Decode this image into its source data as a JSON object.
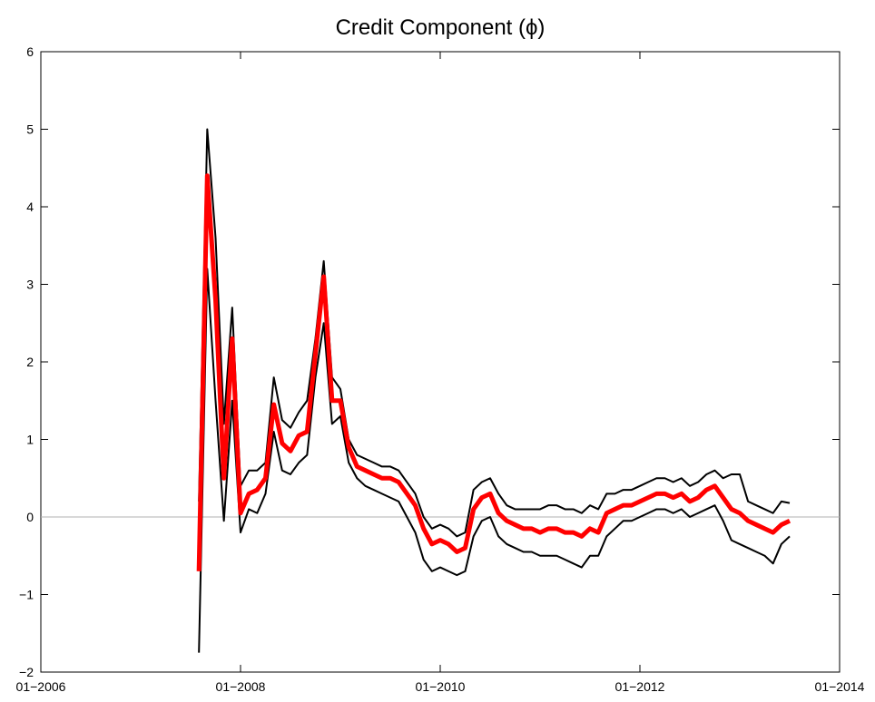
{
  "chart_data": {
    "type": "line",
    "title": "Credit Component (ϕ)",
    "x": [
      "2007-08",
      "2007-09",
      "2007-10",
      "2007-11",
      "2007-12",
      "2008-01",
      "2008-02",
      "2008-03",
      "2008-04",
      "2008-05",
      "2008-06",
      "2008-07",
      "2008-08",
      "2008-09",
      "2008-10",
      "2008-11",
      "2008-12",
      "2009-01",
      "2009-02",
      "2009-03",
      "2009-04",
      "2009-05",
      "2009-06",
      "2009-07",
      "2009-08",
      "2009-09",
      "2009-10",
      "2009-11",
      "2009-12",
      "2010-01",
      "2010-02",
      "2010-03",
      "2010-04",
      "2010-05",
      "2010-06",
      "2010-07",
      "2010-08",
      "2010-09",
      "2010-10",
      "2010-11",
      "2010-12",
      "2011-01",
      "2011-02",
      "2011-03",
      "2011-04",
      "2011-05",
      "2011-06",
      "2011-07",
      "2011-08",
      "2011-09",
      "2011-10",
      "2011-11",
      "2011-12",
      "2012-01",
      "2012-02",
      "2012-03",
      "2012-04",
      "2012-05",
      "2012-06",
      "2012-07",
      "2012-08",
      "2012-09",
      "2012-10",
      "2012-11",
      "2012-12",
      "2013-01",
      "2013-02",
      "2013-03",
      "2013-04",
      "2013-05",
      "2013-06",
      "2013-07"
    ],
    "series": [
      {
        "color": "#000000",
        "width": 2,
        "values": [
          0.2,
          5.0,
          3.6,
          1.2,
          2.7,
          0.4,
          0.6,
          0.6,
          0.7,
          1.8,
          1.25,
          1.15,
          1.35,
          1.5,
          2.3,
          3.3,
          1.8,
          1.65,
          1.0,
          0.8,
          0.75,
          0.7,
          0.65,
          0.65,
          0.6,
          0.45,
          0.3,
          0.0,
          -0.15,
          -0.1,
          -0.15,
          -0.25,
          -0.2,
          0.35,
          0.45,
          0.5,
          0.3,
          0.15,
          0.1,
          0.1,
          0.1,
          0.1,
          0.15,
          0.15,
          0.1,
          0.1,
          0.05,
          0.15,
          0.1,
          0.3,
          0.3,
          0.35,
          0.35,
          0.4,
          0.45,
          0.5,
          0.5,
          0.45,
          0.5,
          0.4,
          0.45,
          0.55,
          0.6,
          0.5,
          0.55,
          0.55,
          0.2,
          0.15,
          0.1,
          0.05,
          0.2,
          0.18
        ]
      },
      {
        "color": "#000000",
        "width": 2,
        "values": [
          -1.75,
          3.2,
          1.5,
          -0.05,
          1.5,
          -0.2,
          0.1,
          0.05,
          0.3,
          1.1,
          0.6,
          0.55,
          0.7,
          0.8,
          1.8,
          2.5,
          1.2,
          1.3,
          0.7,
          0.5,
          0.4,
          0.35,
          0.3,
          0.25,
          0.2,
          0.0,
          -0.2,
          -0.55,
          -0.7,
          -0.65,
          -0.7,
          -0.75,
          -0.7,
          -0.25,
          -0.05,
          0.0,
          -0.25,
          -0.35,
          -0.4,
          -0.45,
          -0.45,
          -0.5,
          -0.5,
          -0.5,
          -0.55,
          -0.6,
          -0.65,
          -0.5,
          -0.5,
          -0.25,
          -0.15,
          -0.05,
          -0.05,
          0.0,
          0.05,
          0.1,
          0.1,
          0.05,
          0.1,
          0.0,
          0.05,
          0.1,
          0.15,
          -0.05,
          -0.3,
          -0.35,
          -0.4,
          -0.45,
          -0.5,
          -0.6,
          -0.35,
          -0.25
        ]
      },
      {
        "color": "#ff0000",
        "width": 5,
        "values": [
          -0.7,
          4.4,
          2.8,
          0.5,
          2.3,
          0.05,
          0.3,
          0.35,
          0.5,
          1.45,
          0.95,
          0.85,
          1.05,
          1.1,
          2.1,
          3.1,
          1.5,
          1.5,
          0.9,
          0.65,
          0.6,
          0.55,
          0.5,
          0.5,
          0.45,
          0.3,
          0.15,
          -0.15,
          -0.35,
          -0.3,
          -0.35,
          -0.45,
          -0.4,
          0.1,
          0.25,
          0.3,
          0.05,
          -0.05,
          -0.1,
          -0.15,
          -0.15,
          -0.2,
          -0.15,
          -0.15,
          -0.2,
          -0.2,
          -0.25,
          -0.15,
          -0.2,
          0.05,
          0.1,
          0.15,
          0.15,
          0.2,
          0.25,
          0.3,
          0.3,
          0.25,
          0.3,
          0.2,
          0.25,
          0.35,
          0.4,
          0.25,
          0.1,
          0.05,
          -0.05,
          -0.1,
          -0.15,
          -0.2,
          -0.1,
          -0.05
        ]
      }
    ],
    "xlim": [
      "2006-01",
      "2014-01"
    ],
    "xticks": [
      {
        "value": "2006-01",
        "label": "01−2006"
      },
      {
        "value": "2008-01",
        "label": "01−2008"
      },
      {
        "value": "2010-01",
        "label": "01−2010"
      },
      {
        "value": "2012-01",
        "label": "01−2012"
      },
      {
        "value": "2014-01",
        "label": "01−2014"
      }
    ],
    "ylim": [
      -2,
      6
    ],
    "yticks": [
      {
        "value": -2,
        "label": "−2"
      },
      {
        "value": -1,
        "label": "−1"
      },
      0,
      1,
      2,
      3,
      4,
      5,
      6
    ],
    "reference_line": 0,
    "reference_color": "#b0b0b0"
  }
}
